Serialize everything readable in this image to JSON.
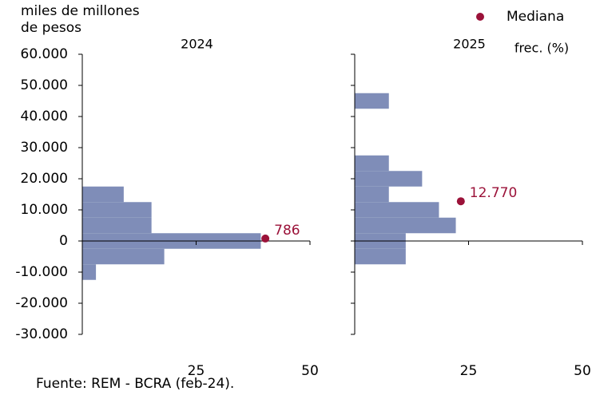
{
  "source": "Fuente: REM - BCRA (feb-24).",
  "legend": {
    "label": "Mediana",
    "color": "#9b1239"
  },
  "chart_data": [
    {
      "type": "histogram",
      "orientation": "horizontal",
      "title": "2024",
      "ylabel": "miles de millones de pesos",
      "bins": [
        -12500,
        -7500,
        -2500,
        2500,
        7500,
        12500,
        17500
      ],
      "values": [
        3,
        18,
        39.2,
        15.2,
        15.2,
        9.1
      ],
      "color": "#7f8db8",
      "median": {
        "value": 786,
        "label": "786",
        "freq": 40.2
      },
      "xlim": [
        0,
        50
      ],
      "xticks": [
        25,
        50
      ],
      "ylim": [
        -30000,
        60000
      ],
      "yticks": [
        {
          "value": 60000,
          "label": "60.000"
        },
        {
          "value": 50000,
          "label": "50.000"
        },
        {
          "value": 40000,
          "label": "40.000"
        },
        {
          "value": 30000,
          "label": "30.000"
        },
        {
          "value": 20000,
          "label": "20.000"
        },
        {
          "value": 10000,
          "label": "10.000"
        },
        0,
        {
          "value": -10000,
          "label": "-10.000"
        },
        {
          "value": -20000,
          "label": "-20.000"
        },
        {
          "value": -30000,
          "label": "-30.000"
        }
      ]
    },
    {
      "type": "histogram",
      "orientation": "horizontal",
      "title": "2025",
      "xlabel": "frec. (%)",
      "bins": [
        -7500,
        -2500,
        2500,
        7500,
        12500,
        17500,
        22500,
        27500,
        32500,
        37500,
        42500,
        47500
      ],
      "values": [
        11.2,
        11.2,
        22.2,
        18.5,
        7.5,
        14.8,
        7.5,
        0,
        0,
        0,
        7.5
      ],
      "color": "#7f8db8",
      "median": {
        "value": 12770,
        "label": "12.770",
        "freq": 23.3
      },
      "xlim": [
        0,
        50
      ],
      "xticks": [
        25,
        50
      ],
      "ylim": [
        -30000,
        60000
      ]
    }
  ]
}
